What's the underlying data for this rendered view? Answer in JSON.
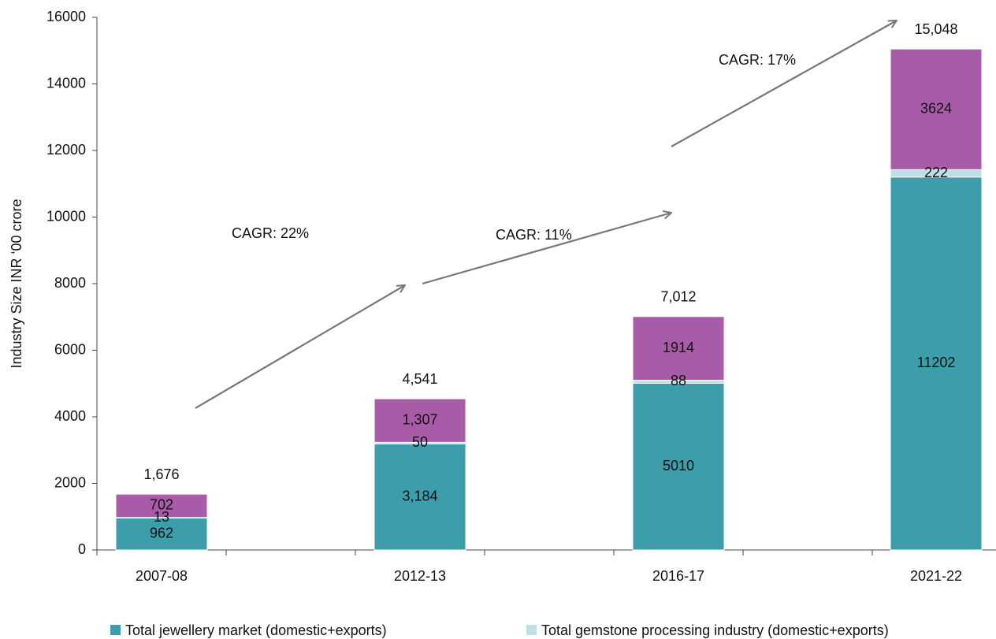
{
  "chart_data": {
    "type": "bar",
    "stacked": true,
    "y_label": "Industry Size INR ‘00 crore",
    "categories": [
      "2007-08",
      "2012-13",
      "2016-17",
      "2021-22"
    ],
    "series": [
      {
        "name": "Total jewellery market (domestic+exports)",
        "color": "#3d9dab",
        "values": [
          962,
          3184,
          5010,
          11202
        ],
        "value_labels": [
          "962",
          "3,184",
          "5010",
          "11202"
        ]
      },
      {
        "name": "Total gemstone processing industry (domestic+exports)",
        "color": "#bde0e6",
        "values": [
          13,
          50,
          88,
          222
        ]
      },
      {
        "color": "#a85ca8",
        "values": [
          702,
          1307,
          1914,
          3624
        ],
        "value_labels": [
          "702",
          "1,307",
          "1914",
          "3624"
        ]
      }
    ],
    "totals": {
      "values": [
        1676,
        4541,
        7012,
        15048
      ],
      "value_labels": [
        "1,676",
        "4,541",
        "7,012",
        "15,048"
      ]
    },
    "annotations": [
      "CAGR: 22%",
      "CAGR: 11%",
      "CAGR: 17%"
    ],
    "ylim": [
      0,
      16000
    ],
    "yticks": [
      0,
      2000,
      4000,
      6000,
      8000,
      10000,
      12000,
      14000,
      16000
    ],
    "grid": false
  }
}
